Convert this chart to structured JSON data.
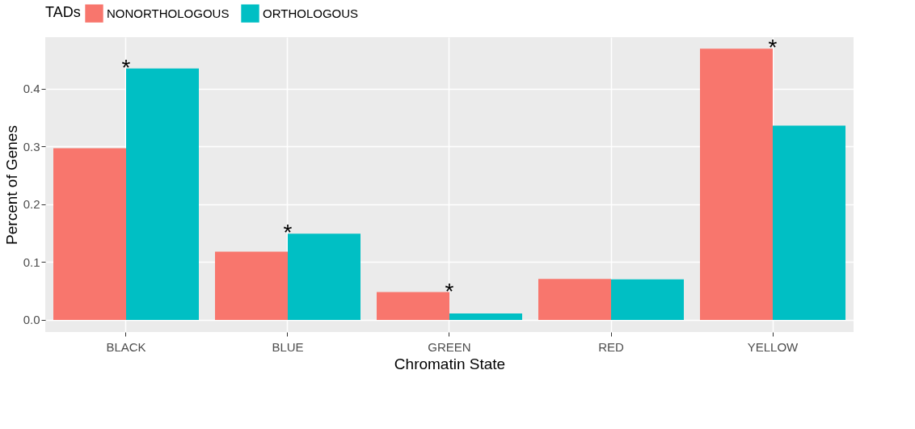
{
  "chart_data": {
    "type": "bar",
    "xlabel": "Chromatin State",
    "ylabel": "Percent of Genes",
    "legend_title": "TADs",
    "categories": [
      "BLACK",
      "BLUE",
      "GREEN",
      "RED",
      "YELLOW"
    ],
    "series": [
      {
        "name": "NONORTHOLOGOUS",
        "color": "#f8766d",
        "values": [
          0.297,
          0.118,
          0.048,
          0.071,
          0.469
        ]
      },
      {
        "name": "ORTHOLOGOUS",
        "color": "#00bfc4",
        "values": [
          0.435,
          0.149,
          0.011,
          0.07,
          0.336
        ]
      }
    ],
    "ylim": [
      -0.021,
      0.489
    ],
    "yticks": [
      {
        "value": 0,
        "label": "0.0"
      },
      0.1,
      0.2,
      0.3,
      0.4
    ],
    "grid": true,
    "legend": "top",
    "annotations": [
      {
        "text": "*",
        "x": "BLACK",
        "y": 0.435
      },
      {
        "text": "*",
        "x": "BLUE",
        "y": 0.149
      },
      {
        "text": "*",
        "x": "GREEN",
        "y": 0.048
      },
      {
        "text": "*",
        "x": "YELLOW",
        "y": 0.469
      }
    ]
  }
}
